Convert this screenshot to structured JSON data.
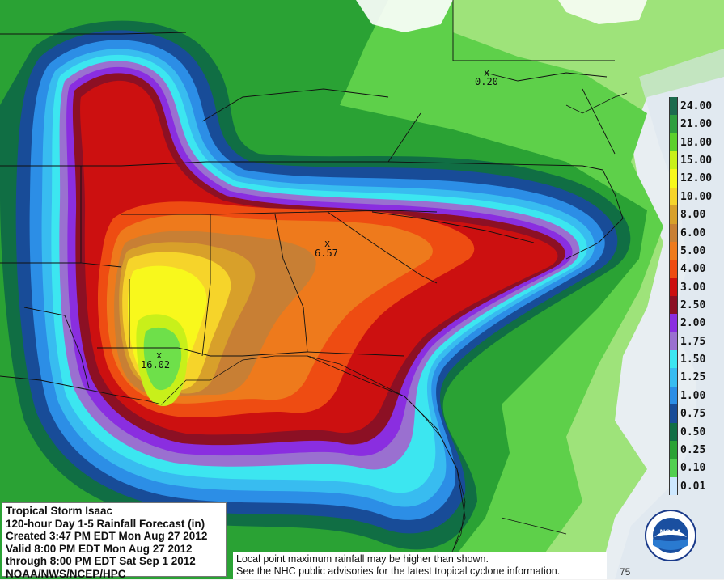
{
  "info": {
    "line1": "Tropical Storm Isaac",
    "line2": "120-hour Day 1-5 Rainfall Forecast (in)",
    "line3": "Created 3:47 PM EDT Mon Aug 27 2012",
    "line4": "Valid 8:00 PM EDT Mon Aug 27 2012",
    "line5": "through 8:00 PM EDT Sat Sep 1 2012",
    "line6": "NOAA/NWS/NCEP/HPC"
  },
  "note": {
    "line1": "Local point maximum rainfall may be higher than shown.",
    "line2": "See the NHC public advisories for the latest tropical cyclone information."
  },
  "legend": [
    {
      "label": "24.00",
      "color": "#1c6b4e"
    },
    {
      "label": "21.00",
      "color": "#2e9e3e"
    },
    {
      "label": "18.00",
      "color": "#5cd02c"
    },
    {
      "label": "15.00",
      "color": "#c8f01a"
    },
    {
      "label": "12.00",
      "color": "#f8f81c"
    },
    {
      "label": "10.00",
      "color": "#f6d42a"
    },
    {
      "label": "8.00",
      "color": "#d8a02a"
    },
    {
      "label": "6.00",
      "color": "#c87f34"
    },
    {
      "label": "5.00",
      "color": "#ee7a1c"
    },
    {
      "label": "4.00",
      "color": "#ee4c12"
    },
    {
      "label": "3.00",
      "color": "#cc1010"
    },
    {
      "label": "2.50",
      "color": "#8c1024"
    },
    {
      "label": "2.00",
      "color": "#8a2ee0"
    },
    {
      "label": "1.75",
      "color": "#9a70d0"
    },
    {
      "label": "1.50",
      "color": "#3ce6f0"
    },
    {
      "label": "1.25",
      "color": "#38bcf0"
    },
    {
      "label": "1.00",
      "color": "#2c8ee6"
    },
    {
      "label": "0.75",
      "color": "#184c98"
    },
    {
      "label": "0.50",
      "color": "#106e44"
    },
    {
      "label": "0.25",
      "color": "#2aa234"
    },
    {
      "label": "0.10",
      "color": "#52d050"
    },
    {
      "label": "0.01",
      "color": "#cde8ff"
    }
  ],
  "points": {
    "p1": "0.20",
    "p2": "6.57",
    "p3": "16.02"
  },
  "point_marker": "x",
  "logo_text": "NOAA",
  "lon_text": "75"
}
